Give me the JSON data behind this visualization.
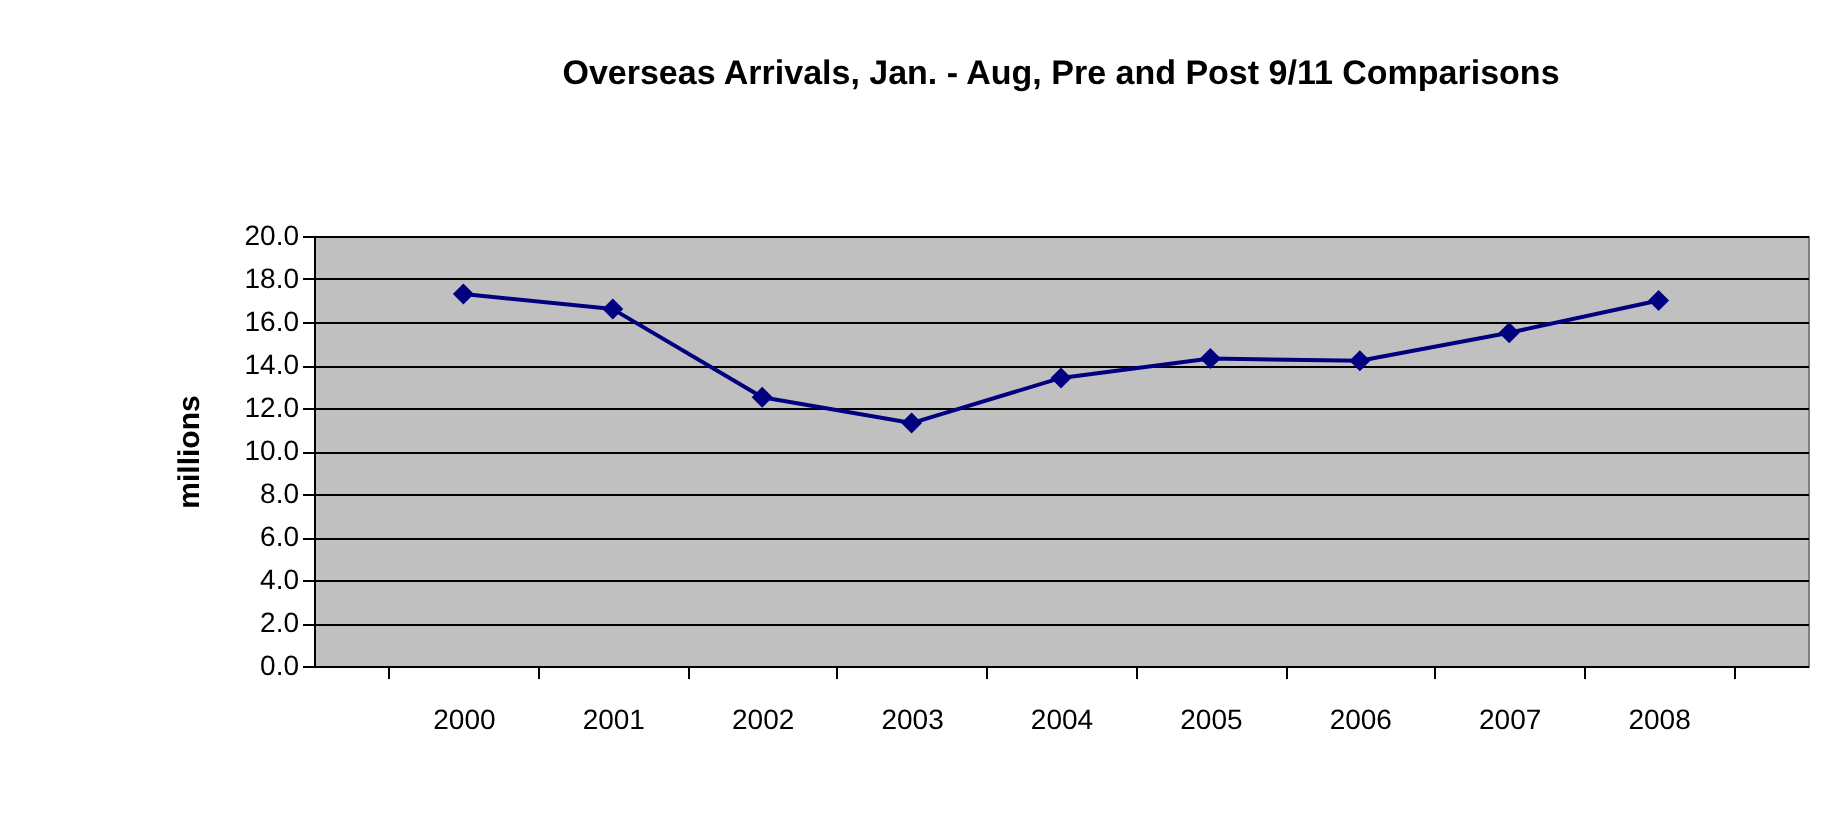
{
  "chart_data": {
    "type": "line",
    "title": "Overseas Arrivals, Jan. - Aug, Pre and Post 9/11 Comparisons",
    "ylabel": "millions",
    "categories": [
      "2000",
      "2001",
      "2002",
      "2003",
      "2004",
      "2005",
      "2006",
      "2007",
      "2008"
    ],
    "series": [
      {
        "color": "#000080",
        "values": [
          17.3,
          16.6,
          12.5,
          11.3,
          13.4,
          14.3,
          14.2,
          15.5,
          17.0
        ]
      }
    ],
    "ylim": [
      0,
      20
    ],
    "yticks": [
      {
        "value": 0,
        "label": "0.0"
      },
      {
        "value": 2,
        "label": "2.0"
      },
      {
        "value": 4,
        "label": "4.0"
      },
      {
        "value": 6,
        "label": "6.0"
      },
      {
        "value": 8,
        "label": "8.0"
      },
      {
        "value": 10,
        "label": "10.0"
      },
      {
        "value": 12,
        "label": "12.0"
      },
      {
        "value": 14,
        "label": "14.0"
      },
      {
        "value": 16,
        "label": "16.0"
      },
      {
        "value": 18,
        "label": "18.0"
      },
      {
        "value": 20,
        "label": "20.0"
      }
    ],
    "grid": "y",
    "marker": "diamond",
    "legend": false
  }
}
